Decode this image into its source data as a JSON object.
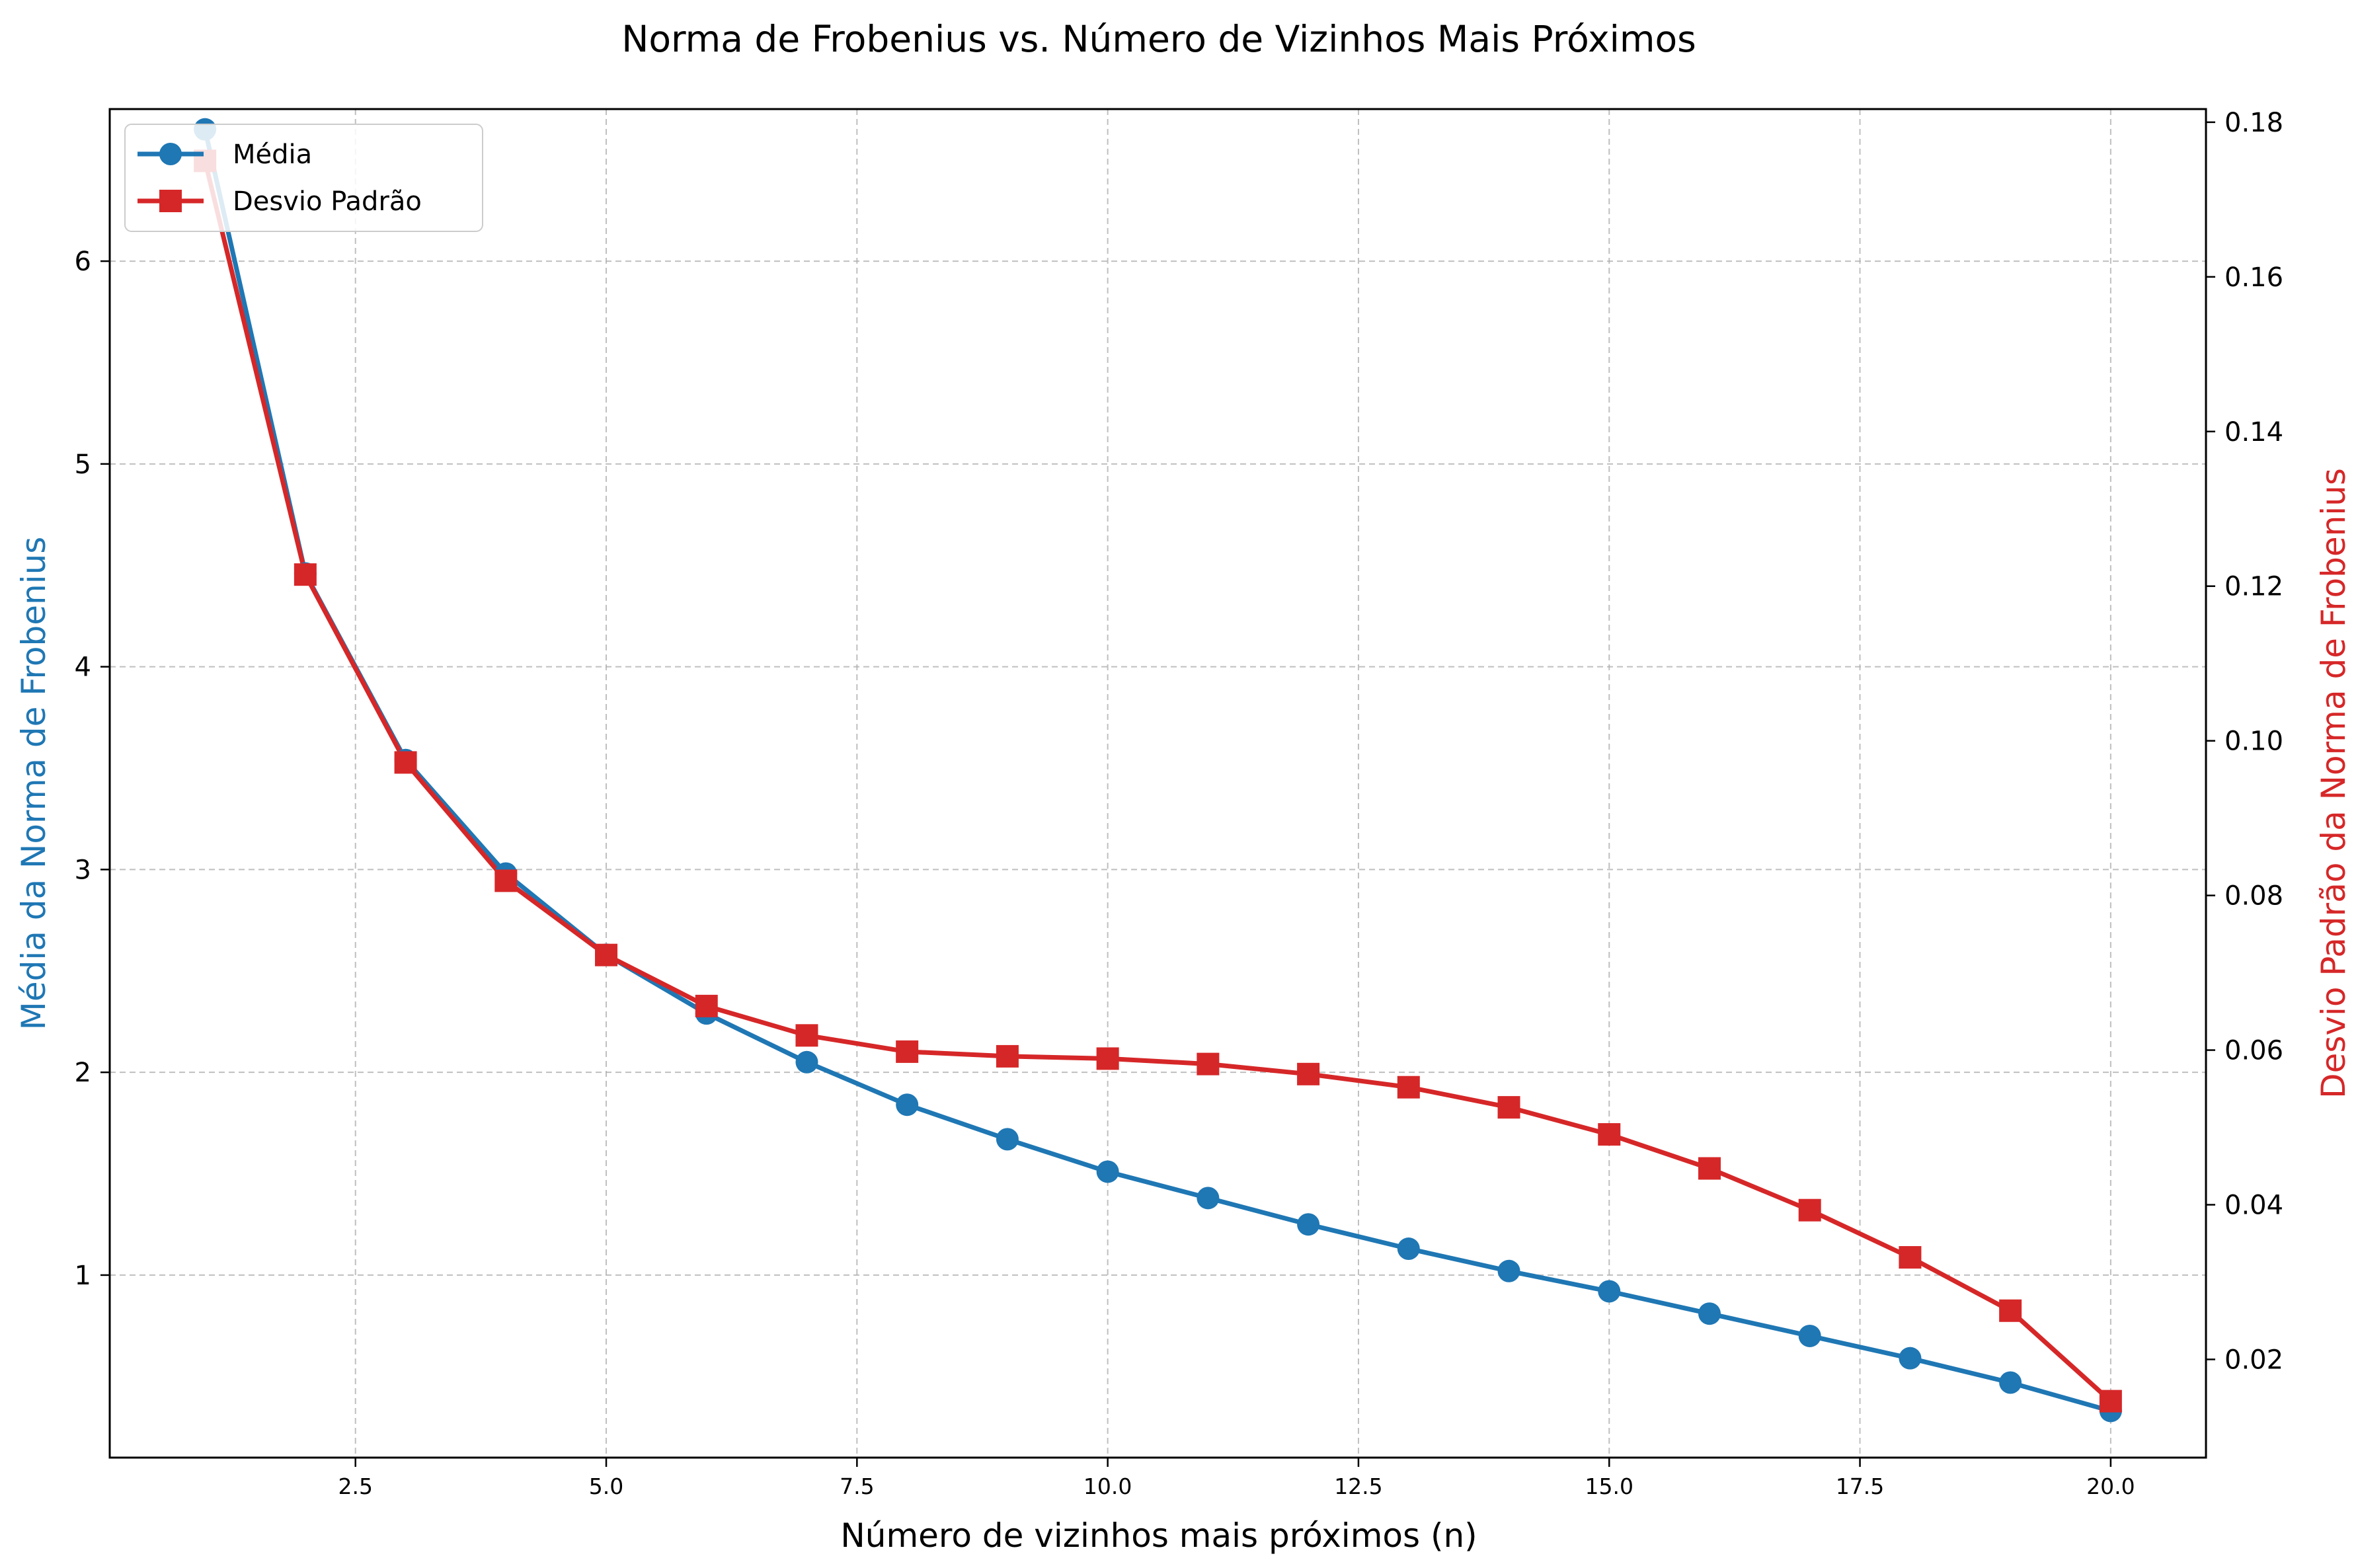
{
  "chart_data": {
    "type": "line",
    "title": "Norma de Frobenius vs. Número de Vizinhos Mais Próximos",
    "xlabel": "Número de vizinhos mais próximos (n)",
    "ylabel_left": "Média da Norma de Frobenius",
    "ylabel_right": "Desvio Padrão da Norma de Frobenius",
    "x": [
      1,
      2,
      3,
      4,
      5,
      6,
      7,
      8,
      9,
      10,
      11,
      12,
      13,
      14,
      15,
      16,
      17,
      18,
      19,
      20
    ],
    "xlim": [
      0.05,
      20.95
    ],
    "ylim_left": [
      0.1,
      6.75
    ],
    "ylim_right": [
      0.0073,
      0.1817
    ],
    "x_ticks": [
      2.5,
      5.0,
      7.5,
      10.0,
      12.5,
      15.0,
      17.5,
      20.0
    ],
    "x_tick_labels": [
      "2.5",
      "5.0",
      "7.5",
      "10.0",
      "12.5",
      "15.0",
      "17.5",
      "20.0"
    ],
    "y_left_ticks": [
      1,
      2,
      3,
      4,
      5,
      6
    ],
    "y_left_tick_labels": [
      "1",
      "2",
      "3",
      "4",
      "5",
      "6"
    ],
    "y_right_ticks": [
      0.02,
      0.04,
      0.06,
      0.08,
      0.1,
      0.12,
      0.14,
      0.16,
      0.18
    ],
    "y_right_tick_labels": [
      "0.02",
      "0.04",
      "0.06",
      "0.08",
      "0.10",
      "0.12",
      "0.14",
      "0.16",
      "0.18"
    ],
    "grid": true,
    "legend_position": "top-left",
    "series": [
      {
        "name": "Média",
        "axis": "left",
        "color": "#1f77b4",
        "marker": "circle",
        "values": [
          6.65,
          4.46,
          3.54,
          2.98,
          2.58,
          2.29,
          2.05,
          1.84,
          1.67,
          1.51,
          1.38,
          1.25,
          1.13,
          1.02,
          0.92,
          0.81,
          0.7,
          0.59,
          0.47,
          0.33
        ]
      },
      {
        "name": "Desvio Padrão",
        "axis": "right",
        "color": "#d62728",
        "marker": "square",
        "values": [
          0.175,
          0.1215,
          0.0972,
          0.0819,
          0.0723,
          0.0657,
          0.0619,
          0.0598,
          0.0592,
          0.0589,
          0.0582,
          0.0569,
          0.0552,
          0.0526,
          0.0491,
          0.0447,
          0.0393,
          0.0332,
          0.0263,
          0.0146
        ]
      }
    ]
  }
}
